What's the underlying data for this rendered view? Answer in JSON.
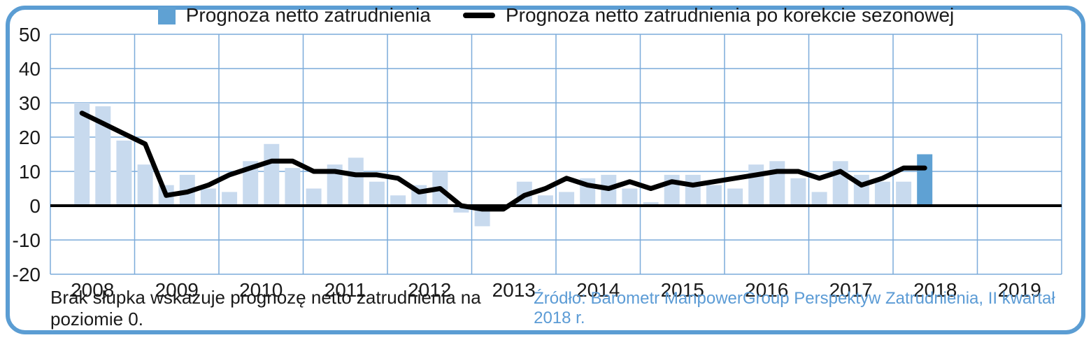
{
  "legend": {
    "bar_label": "Prognoza netto zatrudnienia",
    "line_label": "Prognoza netto zatrudnienia po korekcie sezonowej"
  },
  "footnote": "Brak słupka wskazuje prognozę netto zatrudnienia na poziomie 0.",
  "source": "Źródło: Barometr ManpowerGroup Perspektyw Zatrudnienia, II kwartał 2018 r.",
  "colors": {
    "bar": "#c8daee",
    "bar_highlight": "#5fa1d3",
    "line": "#000000",
    "grid": "#7cabda",
    "border": "#5b9dd3",
    "source_text": "#5b9bd5",
    "text": "#1a1a1a"
  },
  "chart_data": {
    "type": "bar",
    "title": "",
    "xlabel": "",
    "ylabel": "",
    "ylim": [
      -20,
      50
    ],
    "y_ticks": [
      50,
      40,
      30,
      20,
      10,
      0,
      -10,
      -20
    ],
    "grid": true,
    "legend_position": "top",
    "x_tick_labels": [
      "2008",
      "2009",
      "2010",
      "2011",
      "2012",
      "2013",
      "2014",
      "2015",
      "2016",
      "2017",
      "2018",
      "2019"
    ],
    "categories": [
      "2008-Q2",
      "2008-Q3",
      "2008-Q4",
      "2009-Q1",
      "2009-Q2",
      "2009-Q3",
      "2009-Q4",
      "2010-Q1",
      "2010-Q2",
      "2010-Q3",
      "2010-Q4",
      "2011-Q1",
      "2011-Q2",
      "2011-Q3",
      "2011-Q4",
      "2012-Q1",
      "2012-Q2",
      "2012-Q3",
      "2012-Q4",
      "2013-Q1",
      "2013-Q2",
      "2013-Q3",
      "2013-Q4",
      "2014-Q1",
      "2014-Q2",
      "2014-Q3",
      "2014-Q4",
      "2015-Q1",
      "2015-Q2",
      "2015-Q3",
      "2015-Q4",
      "2016-Q1",
      "2016-Q2",
      "2016-Q3",
      "2016-Q4",
      "2017-Q1",
      "2017-Q2",
      "2017-Q3",
      "2017-Q4",
      "2018-Q1",
      "2018-Q2"
    ],
    "series": [
      {
        "name": "Prognoza netto zatrudnienia",
        "type": "bar",
        "color": "#c8daee",
        "highlight_last": true,
        "highlight_color": "#5fa1d3",
        "values": [
          30,
          29,
          19,
          12,
          6,
          9,
          5,
          4,
          13,
          18,
          11,
          5,
          12,
          14,
          7,
          3,
          6,
          10,
          -2,
          -6,
          0,
          7,
          3,
          4,
          8,
          9,
          5,
          1,
          9,
          9,
          6,
          5,
          12,
          13,
          8,
          4,
          13,
          9,
          7,
          7,
          15
        ]
      },
      {
        "name": "Prognoza netto zatrudnienia po korekcie sezonowej",
        "type": "line",
        "color": "#000000",
        "values": [
          27,
          24,
          21,
          18,
          3,
          4,
          6,
          9,
          11,
          13,
          13,
          10,
          10,
          9,
          9,
          8,
          4,
          5,
          0,
          -1,
          -1,
          3,
          5,
          8,
          6,
          5,
          7,
          5,
          7,
          6,
          7,
          8,
          9,
          10,
          10,
          8,
          10,
          6,
          8,
          11,
          11
        ]
      }
    ]
  }
}
